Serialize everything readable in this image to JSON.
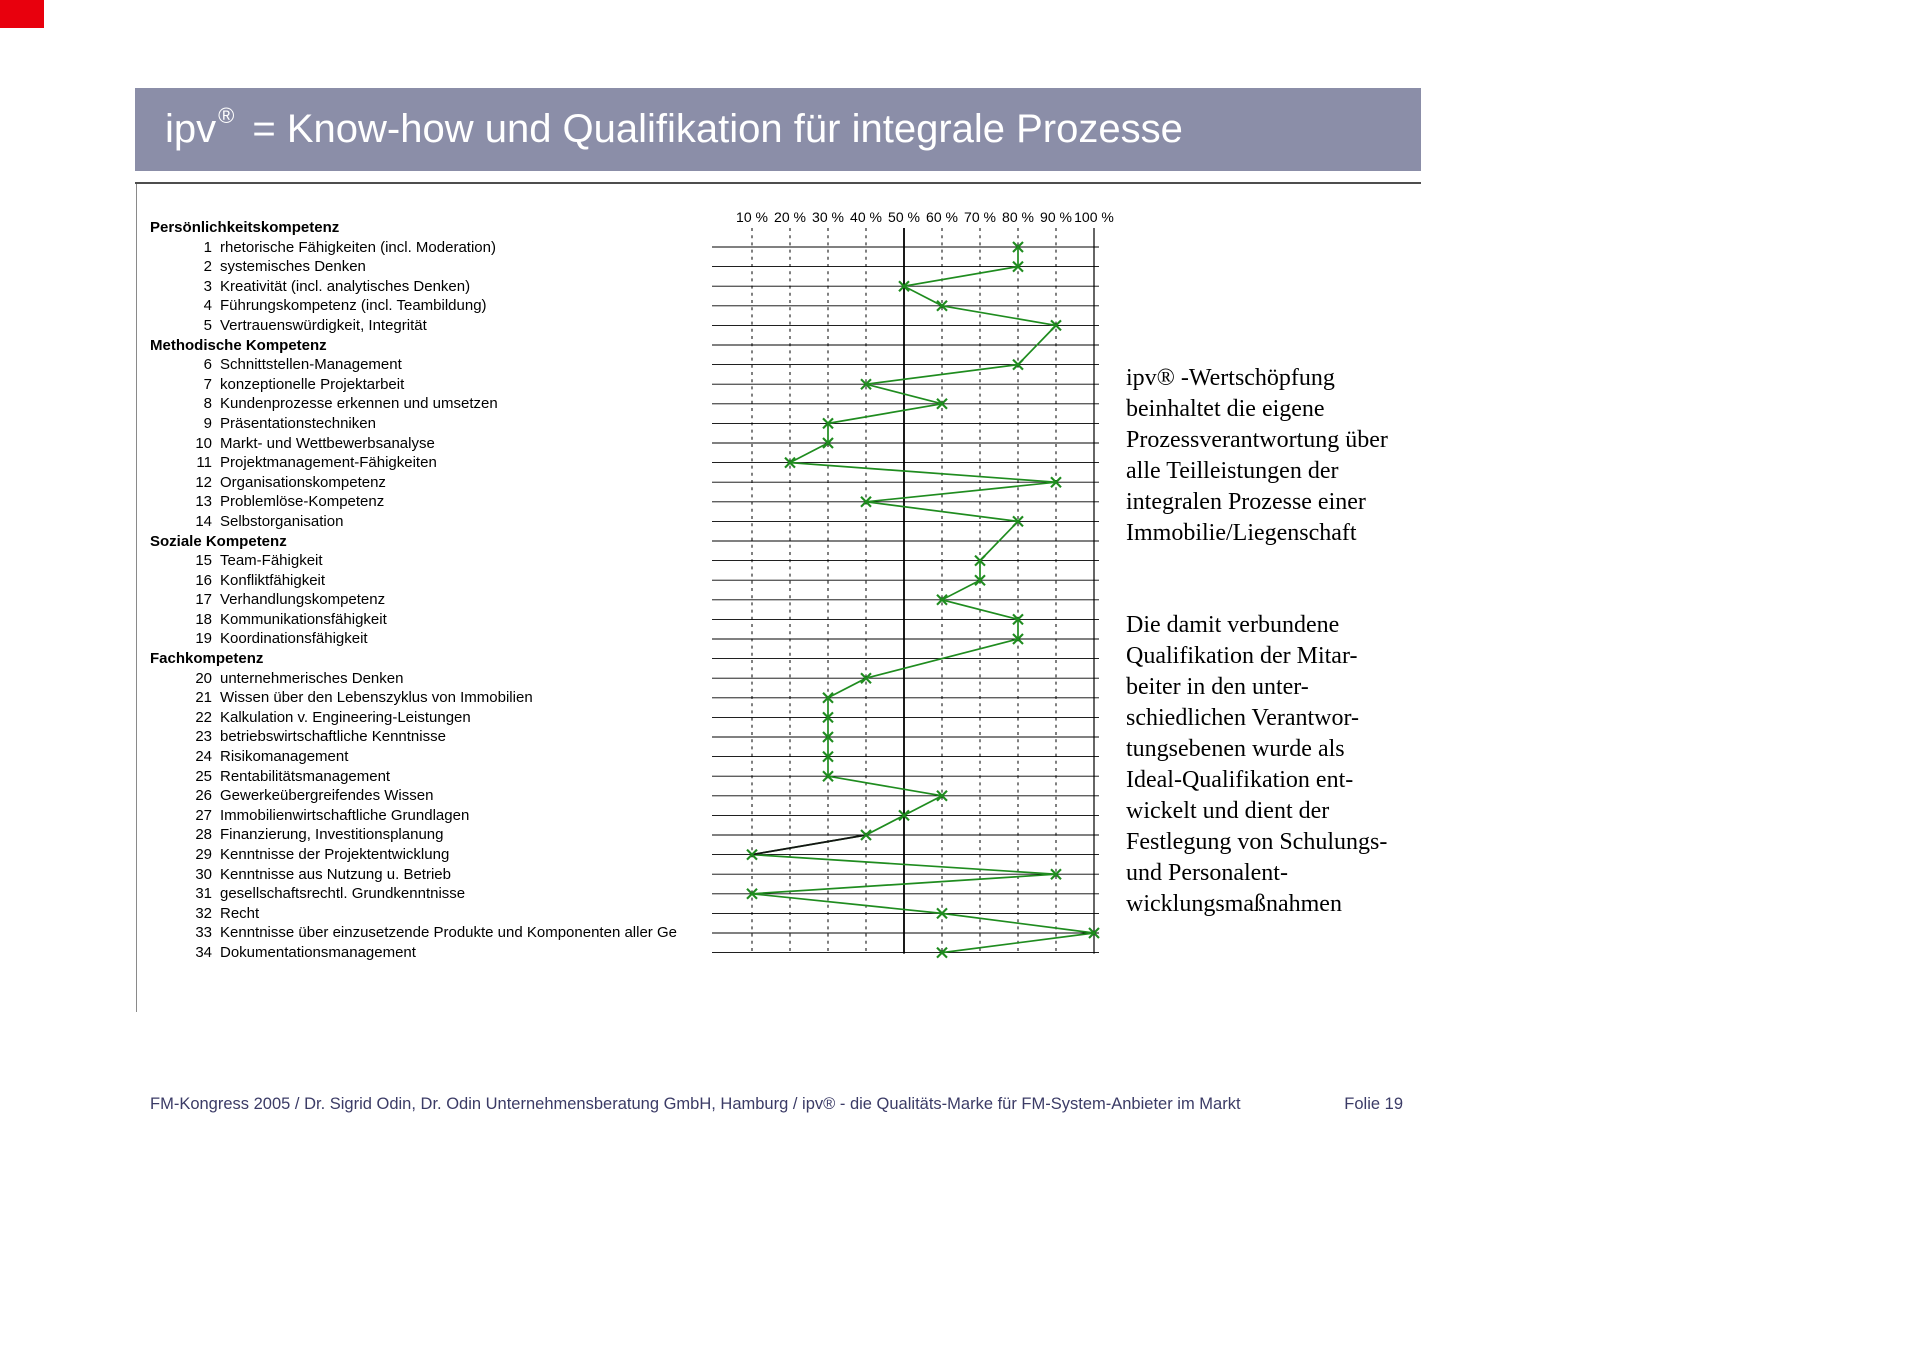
{
  "slide": {
    "title": {
      "brand": "ipv",
      "reg": "®",
      "rest": "= Know-how und Qualifikation für integrale Prozesse"
    },
    "side_text": {
      "paragraph1": "ipv® -Wertschöpfung\nbeinhaltet die eigene\nProzessverantwortung über\nalle Teilleistungen der\nintegralen Prozesse einer\nImmobilie/Liegenschaft",
      "paragraph2": "Die damit verbundene\nQualifikation der Mitar-\nbeiter in den unter-\nschiedlichen Verantwor-\ntungsebenen wurde als\nIdeal-Qualifikation ent-\nwickelt und dient der\nFestlegung von Schulungs-\nund Personalent-\nwicklungsmaßnahmen"
    },
    "footer": {
      "left": "FM-Kongress 2005 / Dr. Sigrid Odin, Dr. Odin Unternehmensberatung GmbH, Hamburg  / ipv® - die Qualitäts-Marke für FM-System-Anbieter im Markt",
      "right": "Folie 19"
    },
    "colors": {
      "title_bar": "#8b8ea8",
      "footer_text": "#3b3b66",
      "accent_red": "#e8000d"
    }
  },
  "competency_list": {
    "sections": [
      {
        "title": "Persönlichkeitskompetenz",
        "items_from": 1,
        "items_to": 5
      },
      {
        "title": "Methodische Kompetenz",
        "items_from": 6,
        "items_to": 14
      },
      {
        "title": "Soziale Kompetenz",
        "items_from": 15,
        "items_to": 19
      },
      {
        "title": "Fachkompetenz",
        "items_from": 20,
        "items_to": 34
      }
    ]
  },
  "chart_data": {
    "type": "line",
    "title": "",
    "xlabel": "",
    "ylabel": "",
    "legend": "none",
    "grid": "on",
    "x_ticks": [
      "10 %",
      "20 %",
      "30 %",
      "40 %",
      "50 %",
      "60 %",
      "70 %",
      "80 %",
      "90 %",
      "100 %"
    ],
    "xlim": [
      10,
      100
    ],
    "solid_gridlines_percent": [
      50,
      100
    ],
    "categories": [
      "rhetorische Fähigkeiten (incl. Moderation)",
      "systemisches Denken",
      "Kreativität (incl. analytisches Denken)",
      "Führungskompetenz (incl. Teambildung)",
      "Vertrauenswürdigkeit, Integrität",
      "Schnittstellen-Management",
      "konzeptionelle Projektarbeit",
      "Kundenprozesse erkennen und umsetzen",
      "Präsentationstechniken",
      "Markt- und Wettbewerbsanalyse",
      "Projektmanagement-Fähigkeiten",
      "Organisationskompetenz",
      "Problemlöse-Kompetenz",
      "Selbstorganisation",
      "Team-Fähigkeit",
      "Konfliktfähigkeit",
      "Verhandlungskompetenz",
      "Kommunikationsfähigkeit",
      "Koordinationsfähigkeit",
      "unternehmerisches Denken",
      "Wissen über den Lebenszyklus von Immobilien",
      "Kalkulation v. Engineering-Leistungen",
      "betriebswirtschaftliche Kenntnisse",
      "Risikomanagement",
      "Rentabilitätsmanagement",
      "Gewerkeübergreifendes Wissen",
      "Immobilienwirtschaftliche Grundlagen",
      "Finanzierung, Investitionsplanung",
      "Kenntnisse der Projektentwicklung",
      "Kenntnisse aus Nutzung u. Betrieb",
      "gesellschaftsrechtl. Grundkenntnisse",
      "Recht",
      "Kenntnisse über einzusetzende Produkte und Komponenten aller Ge",
      "Dokumentationsmanagement"
    ],
    "values": [
      80,
      80,
      50,
      60,
      90,
      80,
      40,
      60,
      30,
      30,
      20,
      90,
      40,
      80,
      70,
      70,
      60,
      80,
      80,
      40,
      30,
      30,
      30,
      30,
      30,
      60,
      50,
      40,
      10,
      90,
      10,
      60,
      100,
      60
    ],
    "marker": "x",
    "line_color": "#1f8c1f",
    "dark_segment": {
      "from_item": 28,
      "to_item": 29,
      "color": "#141414"
    }
  }
}
